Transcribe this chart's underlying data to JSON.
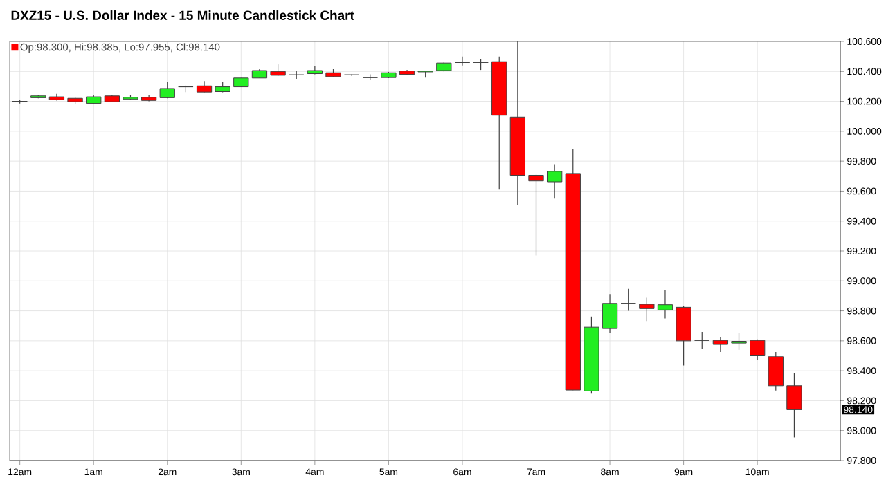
{
  "chart_data": {
    "type": "candlestick",
    "title": "DXZ15 - U.S. Dollar Index - 15 Minute Candlestick Chart",
    "annotations": [
      "Op:98.300, Hi:98.385, Lo:97.955, Cl:98.140",
      "98.140"
    ],
    "categories": [
      "12am",
      null,
      null,
      null,
      "1am",
      null,
      null,
      null,
      "2am",
      null,
      null,
      null,
      "3am",
      null,
      null,
      null,
      "4am",
      null,
      null,
      null,
      "5am",
      null,
      null,
      null,
      "6am",
      null,
      null,
      null,
      "7am",
      null,
      null,
      null,
      "8am",
      null,
      null,
      null,
      "9am",
      null,
      null,
      null,
      "10am",
      null,
      null
    ],
    "ohlc": [
      [
        100.2,
        100.21,
        100.185,
        100.2
      ],
      [
        100.224,
        100.24,
        100.22,
        100.236
      ],
      [
        100.23,
        100.25,
        100.205,
        100.21
      ],
      [
        100.22,
        100.225,
        100.18,
        100.197
      ],
      [
        100.186,
        100.24,
        100.18,
        100.23
      ],
      [
        100.236,
        100.24,
        100.195,
        100.197
      ],
      [
        100.215,
        100.24,
        100.21,
        100.227
      ],
      [
        100.227,
        100.24,
        100.2,
        100.206
      ],
      [
        100.224,
        100.327,
        100.22,
        100.286
      ],
      [
        100.297,
        100.305,
        100.262,
        100.297
      ],
      [
        100.303,
        100.335,
        100.26,
        100.262
      ],
      [
        100.265,
        100.327,
        100.26,
        100.297
      ],
      [
        100.297,
        100.356,
        100.295,
        100.356
      ],
      [
        100.356,
        100.415,
        100.355,
        100.406
      ],
      [
        100.4,
        100.447,
        100.37,
        100.374
      ],
      [
        100.377,
        100.403,
        100.35,
        100.377
      ],
      [
        100.385,
        100.438,
        100.38,
        100.406
      ],
      [
        100.391,
        100.415,
        100.36,
        100.365
      ],
      [
        100.377,
        100.38,
        100.37,
        100.377
      ],
      [
        100.359,
        100.38,
        100.341,
        100.359
      ],
      [
        100.359,
        100.397,
        100.355,
        100.391
      ],
      [
        100.403,
        100.41,
        100.375,
        100.38
      ],
      [
        100.397,
        100.405,
        100.359,
        100.403
      ],
      [
        100.406,
        100.46,
        100.4,
        100.456
      ],
      [
        100.459,
        100.5,
        100.44,
        100.459
      ],
      [
        100.46,
        100.48,
        100.41,
        100.46
      ],
      [
        100.465,
        100.5,
        99.61,
        100.107
      ],
      [
        100.095,
        100.6,
        99.51,
        99.706
      ],
      [
        99.706,
        99.71,
        99.17,
        99.668
      ],
      [
        99.662,
        99.78,
        99.55,
        99.732
      ],
      [
        99.718,
        99.88,
        98.27,
        98.271
      ],
      [
        98.265,
        98.762,
        98.247,
        98.691
      ],
      [
        98.682,
        98.912,
        98.653,
        98.85
      ],
      [
        98.85,
        98.947,
        98.8,
        98.85
      ],
      [
        98.844,
        98.888,
        98.732,
        98.815
      ],
      [
        98.806,
        98.938,
        98.75,
        98.841
      ],
      [
        98.824,
        98.83,
        98.435,
        98.6
      ],
      [
        98.603,
        98.659,
        98.544,
        98.603
      ],
      [
        98.603,
        98.624,
        98.526,
        98.576
      ],
      [
        98.585,
        98.653,
        98.54,
        98.597
      ],
      [
        98.603,
        98.61,
        98.47,
        98.5
      ],
      [
        98.494,
        98.526,
        98.268,
        98.3
      ],
      [
        98.3,
        98.385,
        97.955,
        98.14
      ]
    ],
    "colors": [
      "#404040",
      "#22ee22",
      "#ff0000",
      "#ff0000",
      "#22ee22",
      "#ff0000",
      "#22ee22",
      "#ff0000",
      "#22ee22",
      "#404040",
      "#ff0000",
      "#22ee22",
      "#22ee22",
      "#22ee22",
      "#ff0000",
      "#404040",
      "#22ee22",
      "#ff0000",
      "#404040",
      "#404040",
      "#22ee22",
      "#ff0000",
      "#22ee22",
      "#22ee22",
      "#404040",
      "#404040",
      "#ff0000",
      "#ff0000",
      "#ff0000",
      "#22ee22",
      "#ff0000",
      "#22ee22",
      "#22ee22",
      "#404040",
      "#ff0000",
      "#22ee22",
      "#ff0000",
      "#404040",
      "#ff0000",
      "#22ee22",
      "#ff0000",
      "#ff0000",
      "#ff0000"
    ],
    "ylim": [
      97.8,
      100.6
    ],
    "yticks": [
      {
        "value": 97.8,
        "label": "97.800"
      },
      {
        "value": 98.0,
        "label": "98.000"
      },
      {
        "value": 98.2,
        "label": "98.200"
      },
      {
        "value": 98.4,
        "label": "98.400"
      },
      {
        "value": 98.6,
        "label": "98.600"
      },
      {
        "value": 98.8,
        "label": "98.800"
      },
      {
        "value": 99.0,
        "label": "99.000"
      },
      {
        "value": 99.2,
        "label": "99.200"
      },
      {
        "value": 99.4,
        "label": "99.400"
      },
      {
        "value": 99.6,
        "label": "99.600"
      },
      {
        "value": 99.8,
        "label": "99.800"
      },
      {
        "value": 100.0,
        "label": "100.000"
      },
      {
        "value": 100.2,
        "label": "100.200"
      },
      {
        "value": 100.4,
        "label": "100.400"
      },
      {
        "value": 100.6,
        "label": "100.600"
      }
    ],
    "grid": true
  }
}
